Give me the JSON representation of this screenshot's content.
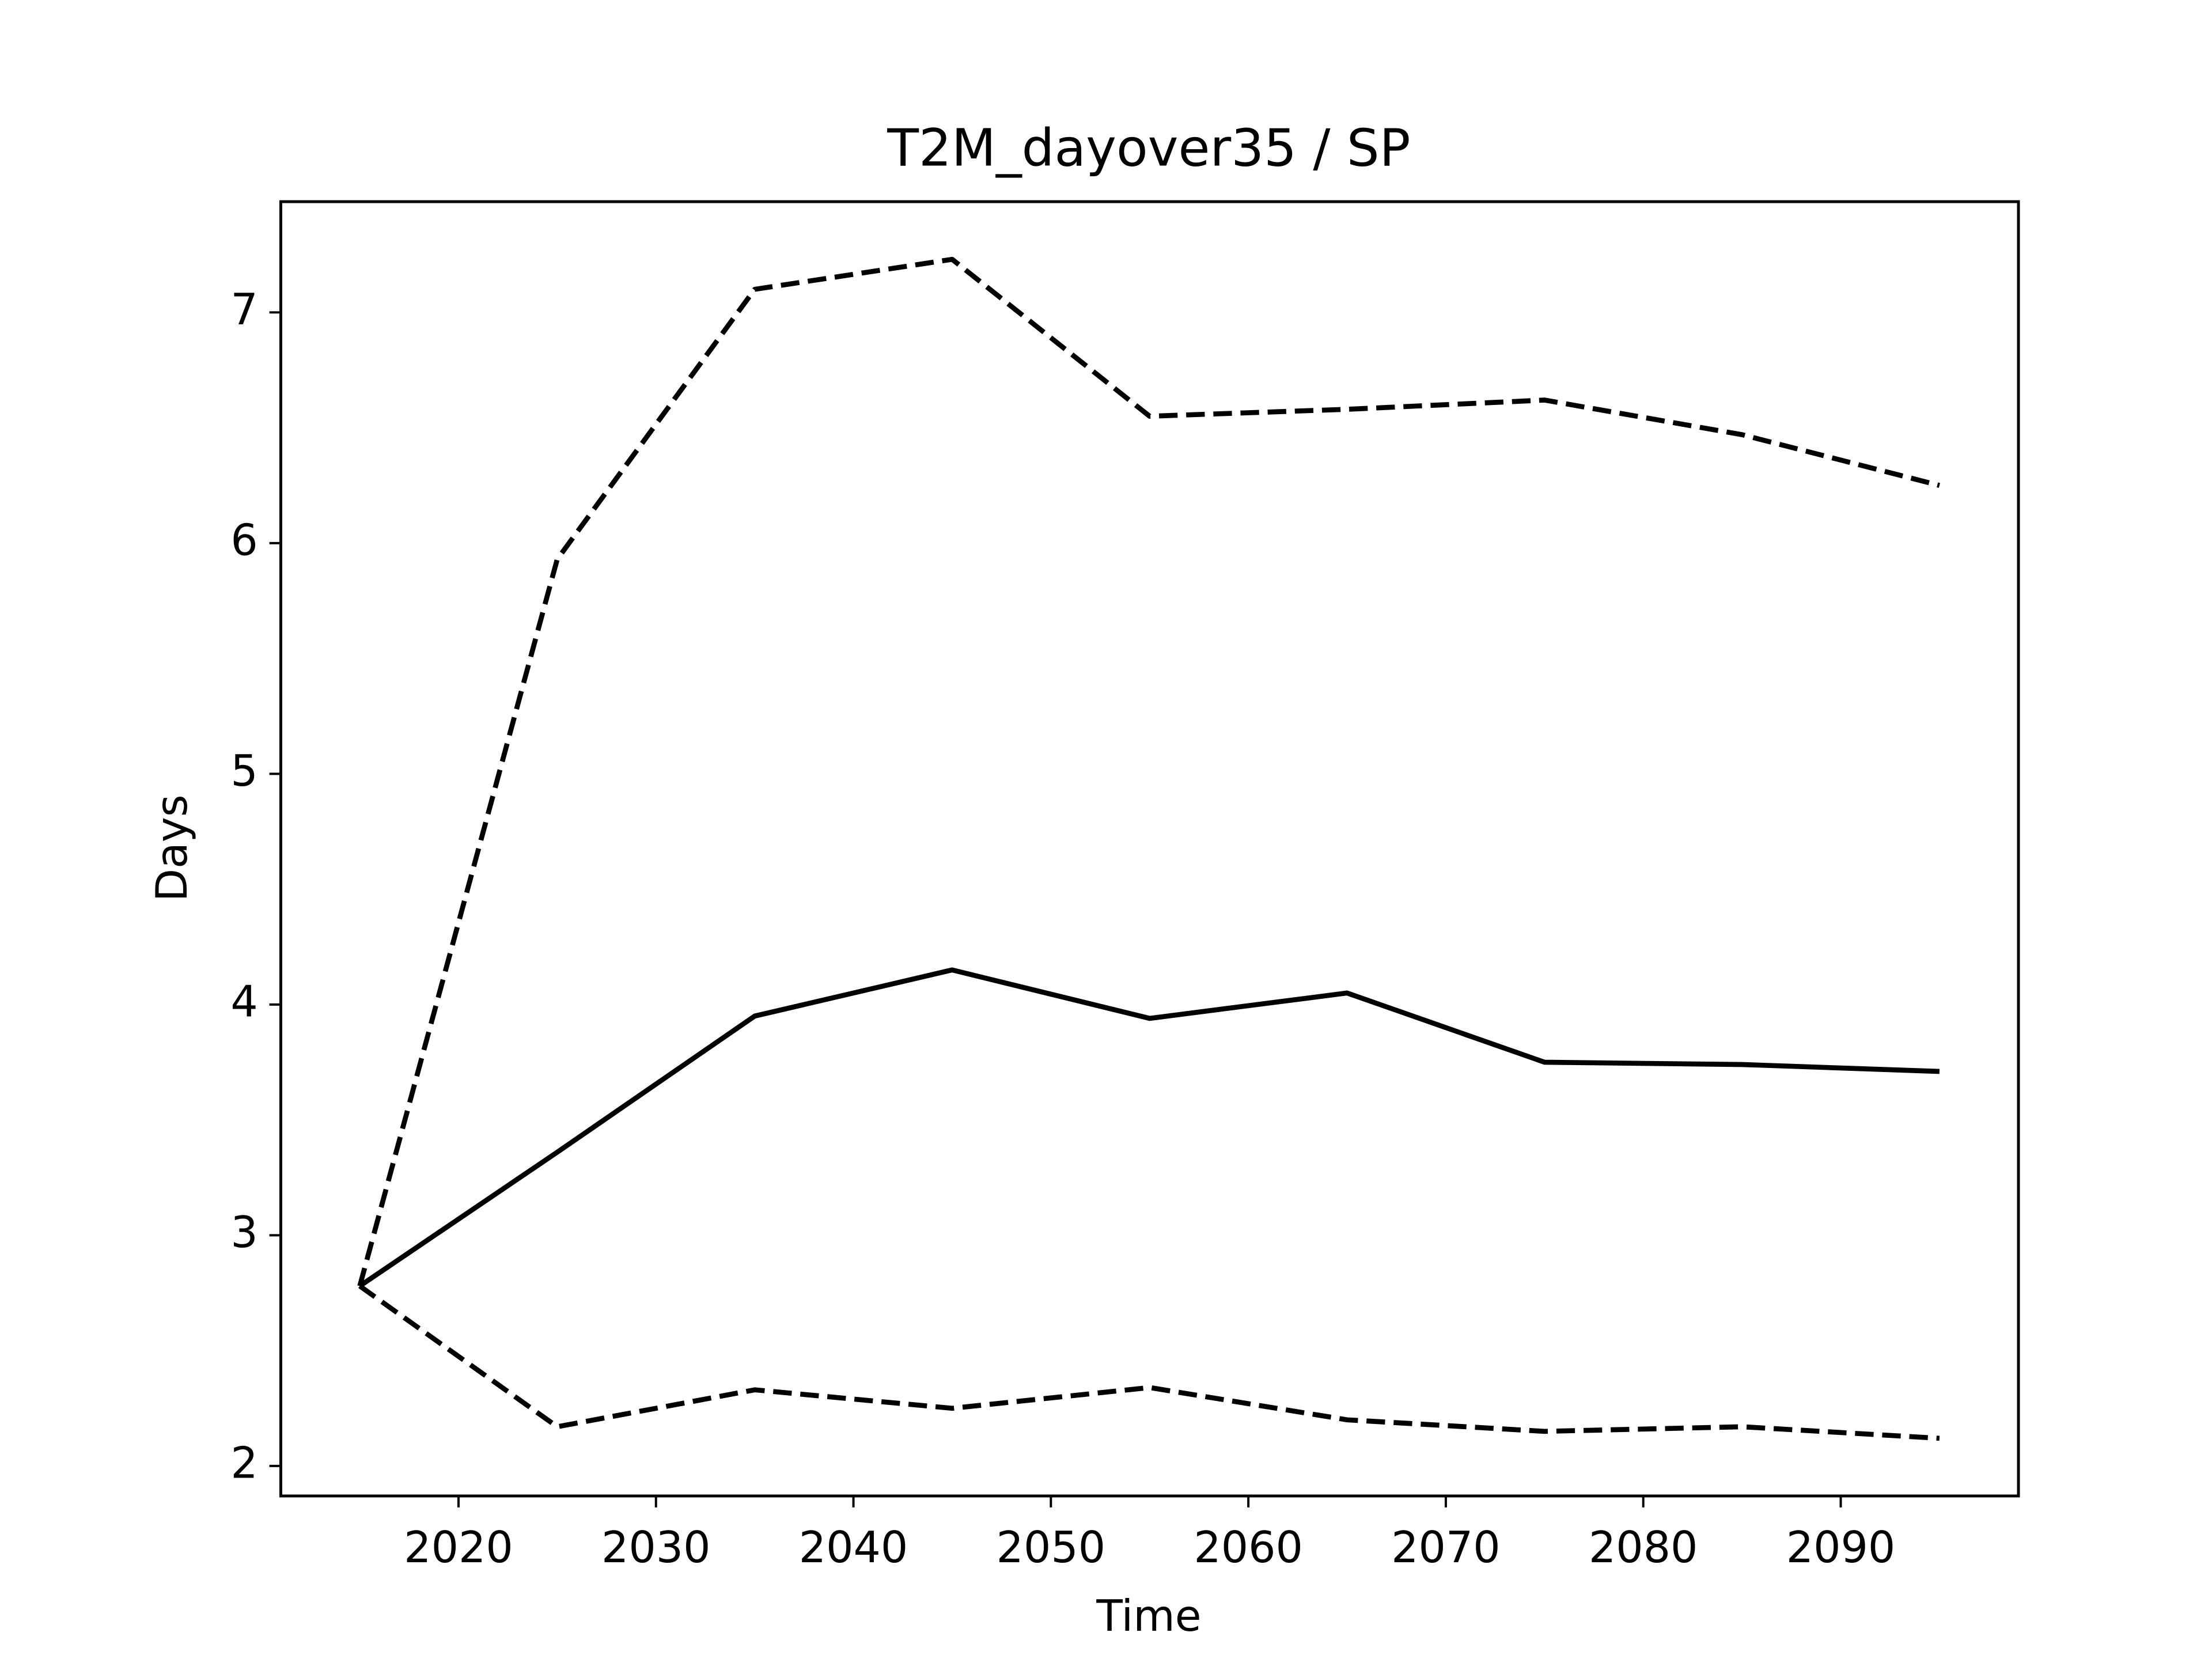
{
  "chart_data": {
    "type": "line",
    "title": "T2M_dayover35 / SP",
    "x_label": "Time",
    "y_label": "Days",
    "x": [
      2015,
      2025,
      2035,
      2045,
      2055,
      2065,
      2075,
      2085,
      2095
    ],
    "series": [
      {
        "color": "#000000",
        "linestyle": "solid",
        "values": [
          2.78,
          3.36,
          3.95,
          4.15,
          3.94,
          4.05,
          3.75,
          3.74,
          3.71
        ]
      },
      {
        "color": "#000000",
        "linestyle": "dashed",
        "values": [
          2.78,
          5.93,
          7.1,
          7.23,
          6.55,
          6.58,
          6.62,
          6.47,
          6.25
        ]
      },
      {
        "color": "#000000",
        "linestyle": "dashed",
        "values": [
          2.78,
          2.17,
          2.33,
          2.25,
          2.34,
          2.2,
          2.15,
          2.17,
          2.12
        ]
      }
    ],
    "xlim": [
      2011,
      2099
    ],
    "xticks": [
      2020,
      2030,
      2040,
      2050,
      2060,
      2070,
      2080,
      2090
    ],
    "ylim": [
      1.87,
      7.48
    ],
    "yticks": [
      2,
      3,
      4,
      5,
      6,
      7
    ],
    "grid": false
  }
}
